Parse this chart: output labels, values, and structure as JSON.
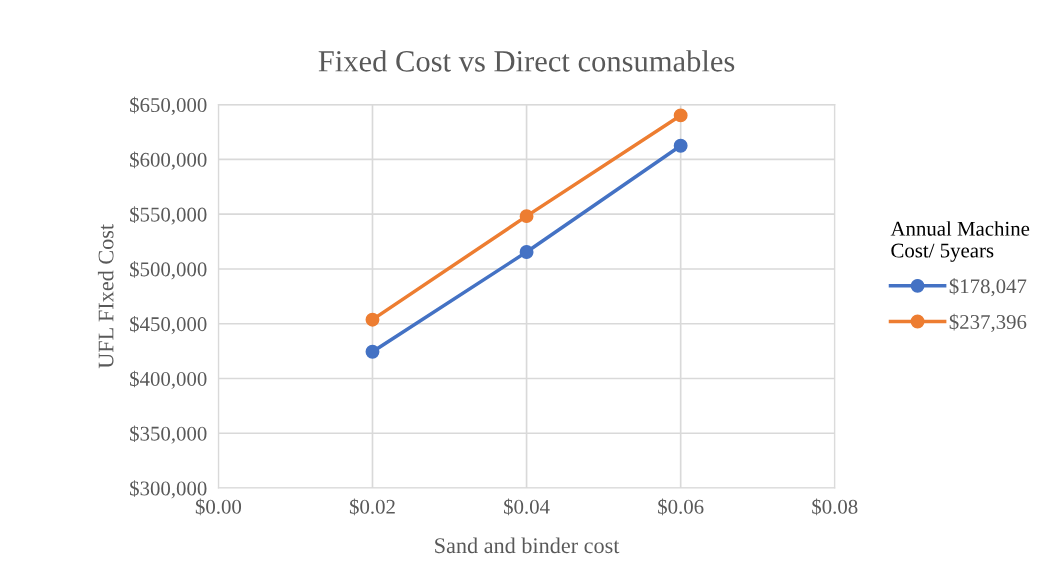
{
  "chart_data": {
    "type": "line",
    "title": "Fixed Cost vs Direct consumables",
    "xlabel": "Sand and binder cost",
    "ylabel": "UFL FIxed Cost",
    "legend_title": "Annual Machine\nCost/ 5years",
    "x": [
      0.02,
      0.04,
      0.06
    ],
    "series": [
      {
        "name": "$178,047",
        "color": "#4472c4",
        "values": [
          424400,
          515500,
          612500
        ]
      },
      {
        "name": "$237,396",
        "color": "#ed7d31",
        "values": [
          453700,
          548200,
          640200
        ]
      }
    ],
    "xlim": [
      0,
      0.08
    ],
    "xticks": [
      {
        "value": 0,
        "label": "$0.00"
      },
      {
        "value": 0.02,
        "label": "$0.02"
      },
      {
        "value": 0.04,
        "label": "$0.04"
      },
      {
        "value": 0.06,
        "label": "$0.06"
      },
      {
        "value": 0.08,
        "label": "$0.08"
      }
    ],
    "ylim": [
      300000,
      650000
    ],
    "yticks": [
      {
        "value": 300000,
        "label": "$300,000"
      },
      {
        "value": 350000,
        "label": "$350,000"
      },
      {
        "value": 400000,
        "label": "$400,000"
      },
      {
        "value": 450000,
        "label": "$450,000"
      },
      {
        "value": 500000,
        "label": "$500,000"
      },
      {
        "value": 550000,
        "label": "$550,000"
      },
      {
        "value": 600000,
        "label": "$600,000"
      },
      {
        "value": 650000,
        "label": "$650,000"
      }
    ],
    "grid": true,
    "legend": "right",
    "marker": "circle",
    "line_style": "solid"
  }
}
